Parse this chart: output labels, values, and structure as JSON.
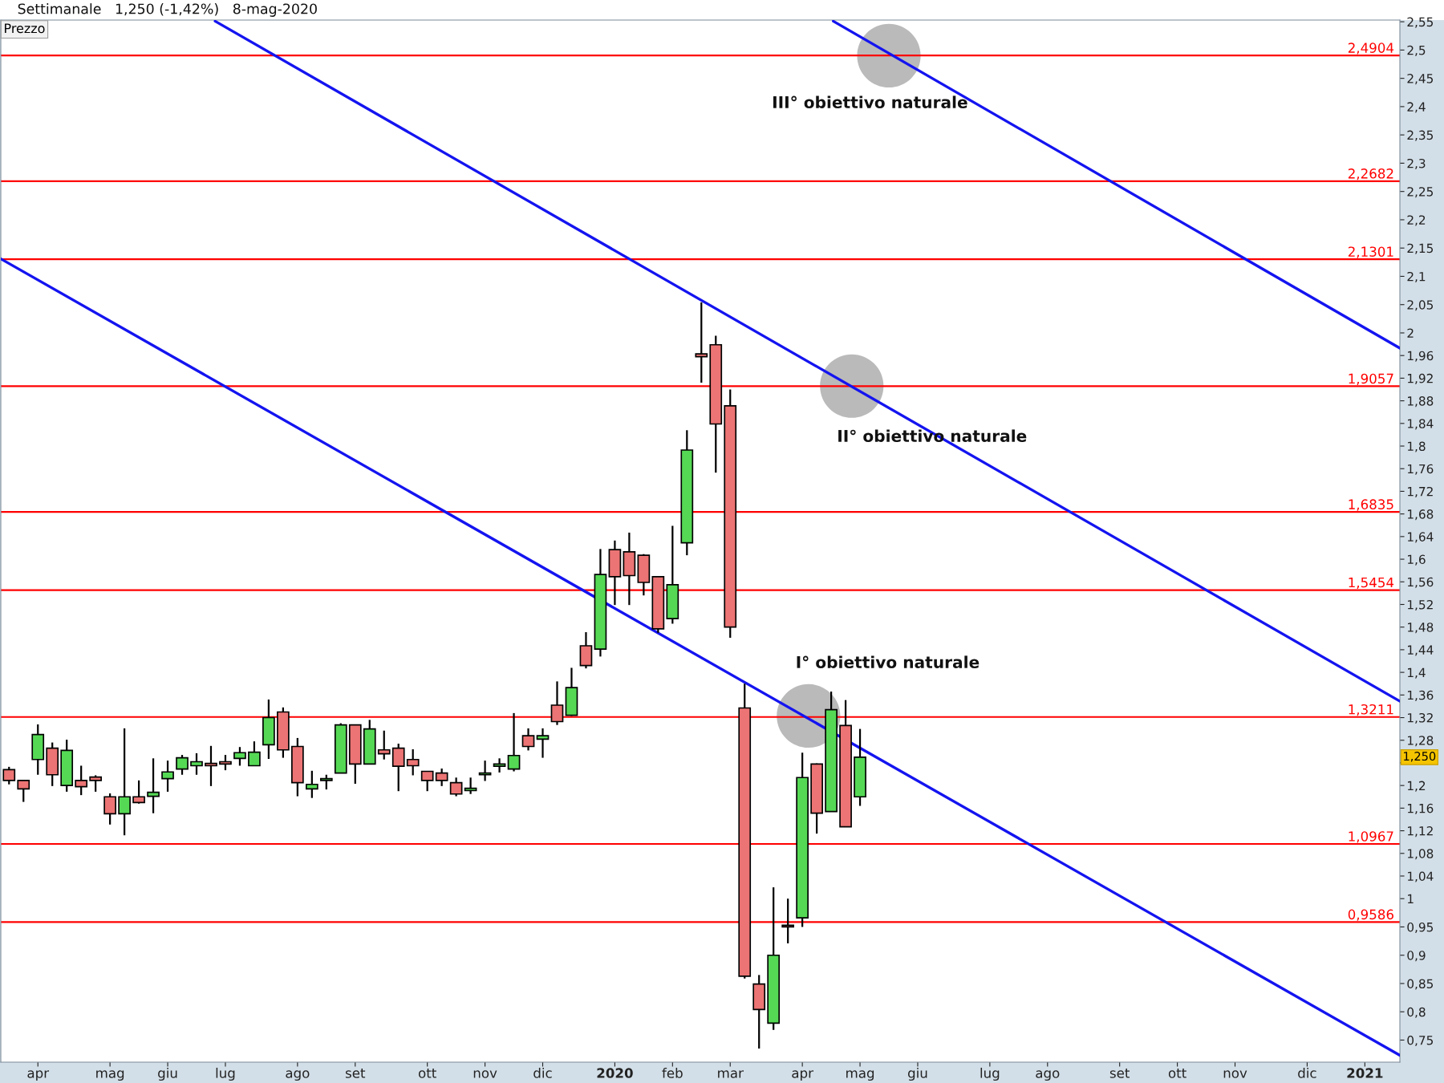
{
  "chart_data": {
    "type": "candlestick",
    "title": "Settimanale   1,250 (-1,42%)   8-mag-2020",
    "annotations": [
      "Prezzo",
      {
        "text": "III° obiettivo naturale",
        "x": "2020-05-18",
        "y": 2.49
      },
      {
        "text": "II° obiettivo naturale",
        "x": "2020-04-30",
        "y": 1.906
      },
      {
        "text": "I° obiettivo naturale",
        "x": "2020-04-09",
        "y": 1.323
      },
      "1,250"
    ],
    "x": [
      "2019-03-18",
      "2019-03-25",
      "2019-04-01",
      "2019-04-08",
      "2019-04-15",
      "2019-04-22",
      "2019-04-29",
      "2019-05-06",
      "2019-05-13",
      "2019-05-20",
      "2019-05-27",
      "2019-06-03",
      "2019-06-10",
      "2019-06-17",
      "2019-06-24",
      "2019-07-01",
      "2019-07-08",
      "2019-07-15",
      "2019-07-22",
      "2019-07-29",
      "2019-08-05",
      "2019-08-12",
      "2019-08-19",
      "2019-08-26",
      "2019-09-02",
      "2019-09-09",
      "2019-09-16",
      "2019-09-23",
      "2019-09-30",
      "2019-10-07",
      "2019-10-14",
      "2019-10-21",
      "2019-10-28",
      "2019-11-04",
      "2019-11-11",
      "2019-11-18",
      "2019-11-25",
      "2019-12-02",
      "2019-12-09",
      "2019-12-16",
      "2019-12-23",
      "2019-12-30",
      "2020-01-06",
      "2020-01-13",
      "2020-01-20",
      "2020-01-27",
      "2020-02-03",
      "2020-02-10",
      "2020-02-17",
      "2020-02-24",
      "2020-03-02",
      "2020-03-09",
      "2020-03-16",
      "2020-03-23",
      "2020-03-30",
      "2020-04-06",
      "2020-04-13",
      "2020-04-20",
      "2020-04-27",
      "2020-05-04"
    ],
    "ohlc": [
      [
        1.228,
        1.233,
        1.202,
        1.209
      ],
      [
        1.209,
        1.209,
        1.171,
        1.194
      ],
      [
        1.246,
        1.308,
        1.219,
        1.29
      ],
      [
        1.266,
        1.276,
        1.199,
        1.219
      ],
      [
        1.2,
        1.281,
        1.189,
        1.262
      ],
      [
        1.209,
        1.235,
        1.183,
        1.198
      ],
      [
        1.215,
        1.218,
        1.189,
        1.209
      ],
      [
        1.18,
        1.186,
        1.131,
        1.15
      ],
      [
        1.15,
        1.301,
        1.112,
        1.18
      ],
      [
        1.18,
        1.209,
        1.168,
        1.17
      ],
      [
        1.181,
        1.248,
        1.151,
        1.188
      ],
      [
        1.212,
        1.244,
        1.189,
        1.224
      ],
      [
        1.229,
        1.254,
        1.219,
        1.249
      ],
      [
        1.235,
        1.257,
        1.219,
        1.242
      ],
      [
        1.239,
        1.27,
        1.199,
        1.235
      ],
      [
        1.242,
        1.254,
        1.227,
        1.238
      ],
      [
        1.248,
        1.268,
        1.235,
        1.258
      ],
      [
        1.235,
        1.278,
        1.235,
        1.259
      ],
      [
        1.272,
        1.352,
        1.247,
        1.32
      ],
      [
        1.33,
        1.338,
        1.249,
        1.263
      ],
      [
        1.269,
        1.284,
        1.181,
        1.205
      ],
      [
        1.194,
        1.226,
        1.178,
        1.202
      ],
      [
        1.209,
        1.219,
        1.193,
        1.212
      ],
      [
        1.222,
        1.31,
        1.222,
        1.307
      ],
      [
        1.307,
        1.307,
        1.203,
        1.238
      ],
      [
        1.238,
        1.316,
        1.238,
        1.3
      ],
      [
        1.263,
        1.297,
        1.246,
        1.256
      ],
      [
        1.266,
        1.274,
        1.19,
        1.234
      ],
      [
        1.246,
        1.264,
        1.218,
        1.235
      ],
      [
        1.225,
        1.225,
        1.19,
        1.209
      ],
      [
        1.222,
        1.23,
        1.199,
        1.209
      ],
      [
        1.205,
        1.214,
        1.181,
        1.185
      ],
      [
        1.191,
        1.214,
        1.185,
        1.195
      ],
      [
        1.219,
        1.244,
        1.208,
        1.222
      ],
      [
        1.234,
        1.248,
        1.223,
        1.238
      ],
      [
        1.229,
        1.328,
        1.225,
        1.253
      ],
      [
        1.288,
        1.301,
        1.262,
        1.269
      ],
      [
        1.282,
        1.301,
        1.249,
        1.288
      ],
      [
        1.342,
        1.384,
        1.307,
        1.313
      ],
      [
        1.324,
        1.408,
        1.323,
        1.373
      ],
      [
        1.447,
        1.471,
        1.407,
        1.412
      ],
      [
        1.441,
        1.618,
        1.428,
        1.573
      ],
      [
        1.617,
        1.633,
        1.519,
        1.569
      ],
      [
        1.613,
        1.647,
        1.519,
        1.571
      ],
      [
        1.607,
        1.609,
        1.536,
        1.559
      ],
      [
        1.569,
        1.569,
        1.47,
        1.477
      ],
      [
        1.495,
        1.659,
        1.486,
        1.555
      ],
      [
        1.629,
        1.828,
        1.607,
        1.793
      ],
      [
        1.963,
        2.054,
        1.912,
        1.958
      ],
      [
        1.979,
        1.995,
        1.753,
        1.839
      ],
      [
        1.871,
        1.9,
        1.461,
        1.48
      ],
      [
        1.337,
        1.38,
        0.859,
        0.863
      ],
      [
        0.849,
        0.865,
        0.735,
        0.804
      ],
      [
        0.78,
        1.02,
        0.768,
        0.9
      ],
      [
        0.953,
        1.0,
        0.921,
        0.95
      ],
      [
        0.966,
        1.258,
        0.95,
        1.214
      ],
      [
        1.238,
        1.239,
        1.115,
        1.151
      ],
      [
        1.154,
        1.366,
        1.154,
        1.334
      ],
      [
        1.306,
        1.351,
        1.127,
        1.127
      ],
      [
        1.18,
        1.3,
        1.164,
        1.25
      ]
    ],
    "colors": [
      "#ec7474",
      "#ec7474",
      "#55d955",
      "#ec7474",
      "#55d955",
      "#ec7474",
      "#ec7474",
      "#ec7474",
      "#55d955",
      "#ec7474",
      "#55d955",
      "#55d955",
      "#55d955",
      "#55d955",
      "#ec7474",
      "#ec7474",
      "#55d955",
      "#55d955",
      "#55d955",
      "#ec7474",
      "#ec7474",
      "#55d955",
      "#55d955",
      "#55d955",
      "#ec7474",
      "#55d955",
      "#ec7474",
      "#ec7474",
      "#ec7474",
      "#ec7474",
      "#ec7474",
      "#ec7474",
      "#55d955",
      "#55d955",
      "#55d955",
      "#55d955",
      "#ec7474",
      "#55d955",
      "#ec7474",
      "#55d955",
      "#ec7474",
      "#55d955",
      "#ec7474",
      "#ec7474",
      "#ec7474",
      "#ec7474",
      "#55d955",
      "#55d955",
      "#ec7474",
      "#ec7474",
      "#ec7474",
      "#ec7474",
      "#ec7474",
      "#55d955",
      "#ec7474",
      "#55d955",
      "#ec7474",
      "#55d955",
      "#ec7474",
      "#55d955"
    ],
    "series": [
      {
        "type": "line",
        "color": "#1414f0",
        "x": [
          "2019-03-14",
          "2021-01-21"
        ],
        "values": [
          2.131,
          0.723
        ]
      },
      {
        "type": "line",
        "color": "#1414f0",
        "x": [
          "2019-06-26",
          "2021-01-21"
        ],
        "values": [
          2.551,
          1.349
        ]
      },
      {
        "type": "line",
        "color": "#1414f0",
        "x": [
          "2020-04-21",
          "2021-01-21"
        ],
        "values": [
          2.551,
          1.973
        ]
      },
      {
        "type": "scatter",
        "color": "#bababa",
        "marker": "circle",
        "x": [
          "2020-04-09",
          "2020-04-30",
          "2020-05-18"
        ],
        "values": [
          1.323,
          1.906,
          2.49
        ]
      }
    ],
    "ref_lines": [
      {
        "axis": "y",
        "value": 2.4904,
        "label": "2,4904",
        "color": "#ff0000"
      },
      {
        "axis": "y",
        "value": 2.2682,
        "label": "2,2682",
        "color": "#ff0000"
      },
      {
        "axis": "y",
        "value": 2.1301,
        "label": "2,1301",
        "color": "#ff0000"
      },
      {
        "axis": "y",
        "value": 1.9057,
        "label": "1,9057",
        "color": "#ff0000"
      },
      {
        "axis": "y",
        "value": 1.6835,
        "label": "1,6835",
        "color": "#ff0000"
      },
      {
        "axis": "y",
        "value": 1.5454,
        "label": "1,5454",
        "color": "#ff0000"
      },
      {
        "axis": "y",
        "value": 1.3211,
        "label": "1,3211",
        "color": "#ff0000"
      },
      {
        "axis": "y",
        "value": 1.0967,
        "label": "1,0967",
        "color": "#ff0000"
      },
      {
        "axis": "y",
        "value": 0.9586,
        "label": "0,9586",
        "color": "#ff0000"
      }
    ],
    "xlim": [
      "2019-03-14",
      "2021-01-21"
    ],
    "xticks": [
      {
        "value": "2019-04-01",
        "label": "apr"
      },
      {
        "value": "2019-05-06",
        "label": "mag"
      },
      {
        "value": "2019-06-03",
        "label": "giu"
      },
      {
        "value": "2019-07-01",
        "label": "lug"
      },
      {
        "value": "2019-08-05",
        "label": "ago"
      },
      {
        "value": "2019-09-02",
        "label": "set"
      },
      {
        "value": "2019-10-07",
        "label": "ott"
      },
      {
        "value": "2019-11-04",
        "label": "nov"
      },
      {
        "value": "2019-12-02",
        "label": "dic"
      },
      {
        "value": "2020-01-06",
        "label": "2020"
      },
      {
        "value": "2020-02-03",
        "label": "feb"
      },
      {
        "value": "2020-03-02",
        "label": "mar"
      },
      {
        "value": "2020-04-06",
        "label": "apr"
      },
      {
        "value": "2020-05-04",
        "label": "mag"
      },
      {
        "value": "2020-06-01",
        "label": "giu"
      },
      {
        "value": "2020-07-06",
        "label": "lug"
      },
      {
        "value": "2020-08-03",
        "label": "ago"
      },
      {
        "value": "2020-09-07",
        "label": "set"
      },
      {
        "value": "2020-10-05",
        "label": "ott"
      },
      {
        "value": "2020-11-02",
        "label": "nov"
      },
      {
        "value": "2020-12-07",
        "label": "dic"
      },
      {
        "value": "2021-01-04",
        "label": "2021"
      }
    ],
    "ylim": [
      0.711,
      2.553
    ],
    "yticks": [
      {
        "value": 0.75,
        "label": "0,75"
      },
      {
        "value": 0.8,
        "label": "0,8"
      },
      {
        "value": 0.85,
        "label": "0,85"
      },
      {
        "value": 0.9,
        "label": "0,9"
      },
      {
        "value": 0.95,
        "label": "0,95"
      },
      1,
      {
        "value": 1.04,
        "label": "1,04"
      },
      {
        "value": 1.08,
        "label": "1,08"
      },
      {
        "value": 1.12,
        "label": "1,12"
      },
      {
        "value": 1.16,
        "label": "1,16"
      },
      {
        "value": 1.2,
        "label": "1,2"
      },
      {
        "value": 1.24,
        "label": null
      },
      {
        "value": 1.28,
        "label": "1,28"
      },
      {
        "value": 1.32,
        "label": "1,32"
      },
      {
        "value": 1.36,
        "label": "1,36"
      },
      {
        "value": 1.4,
        "label": "1,4"
      },
      {
        "value": 1.44,
        "label": "1,44"
      },
      {
        "value": 1.48,
        "label": "1,48"
      },
      {
        "value": 1.52,
        "label": "1,52"
      },
      {
        "value": 1.56,
        "label": "1,56"
      },
      {
        "value": 1.6,
        "label": "1,6"
      },
      {
        "value": 1.64,
        "label": "1,64"
      },
      {
        "value": 1.68,
        "label": "1,68"
      },
      {
        "value": 1.72,
        "label": "1,72"
      },
      {
        "value": 1.76,
        "label": "1,76"
      },
      {
        "value": 1.8,
        "label": "1,8"
      },
      {
        "value": 1.84,
        "label": "1,84"
      },
      {
        "value": 1.88,
        "label": "1,88"
      },
      {
        "value": 1.92,
        "label": "1,92"
      },
      {
        "value": 1.96,
        "label": "1,96"
      },
      2,
      {
        "value": 2.05,
        "label": "2,05"
      },
      {
        "value": 2.1,
        "label": "2,1"
      },
      {
        "value": 2.15,
        "label": "2,15"
      },
      {
        "value": 2.2,
        "label": "2,2"
      },
      {
        "value": 2.25,
        "label": "2,25"
      },
      {
        "value": 2.3,
        "label": "2,3"
      },
      {
        "value": 2.35,
        "label": "2,35"
      },
      {
        "value": 2.4,
        "label": "2,4"
      },
      {
        "value": 2.45,
        "label": "2,45"
      },
      {
        "value": 2.5,
        "label": "2,5"
      },
      {
        "value": 2.55,
        "label": "2,55"
      }
    ]
  }
}
